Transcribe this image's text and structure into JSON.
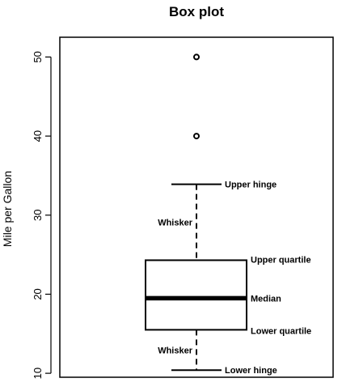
{
  "chart_data": {
    "type": "box",
    "title": "Box plot",
    "xlabel": "",
    "ylabel": "Mile per Gallon",
    "ylim": [
      9.5,
      52.5
    ],
    "yticks": [
      10,
      20,
      30,
      40,
      50
    ],
    "ytick_labels": [
      "10",
      "20",
      "30",
      "40",
      "50"
    ],
    "box": {
      "lower_hinge": 10.4,
      "lower_quartile": 15.5,
      "median": 19.5,
      "upper_quartile": 24.3,
      "upper_hinge": 33.9,
      "outliers": [
        40,
        50
      ]
    },
    "annotations": {
      "upper_hinge": "Upper hinge",
      "upper_quartile": "Upper quartile",
      "median": "Median",
      "lower_quartile": "Lower quartile",
      "lower_hinge": "Lower hinge",
      "whisker_upper": "Whisker",
      "whisker_lower": "Whisker"
    }
  }
}
